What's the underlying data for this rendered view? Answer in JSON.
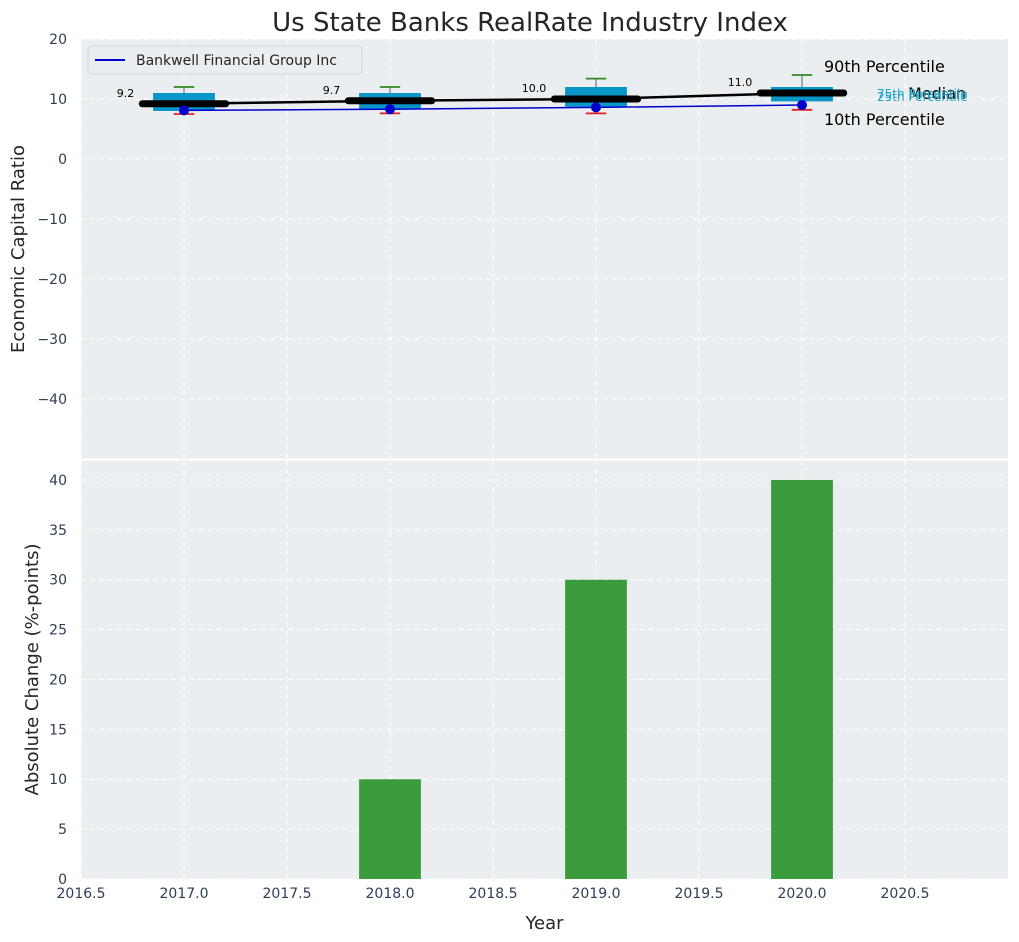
{
  "title": "Us State Banks RealRate Industry Index",
  "colors": {
    "panel_bg": "#eaeef0",
    "box_fill": "#0896c9",
    "median_line": "#000000",
    "company_line": "#0000cc",
    "p90_whisker": "#2e8b22",
    "p10_whisker": "#e02020",
    "bar_fill": "#3a9c3c",
    "quartile_label": "#1aa3c7"
  },
  "chart_data": [
    {
      "type": "box",
      "ylabel": "Economic Capital Ratio",
      "ylim": [
        -50,
        20
      ],
      "yticks": [
        20,
        10,
        0,
        -10,
        -20,
        -30,
        -40
      ],
      "ytick_labels": [
        "20",
        "10",
        "0",
        "−10",
        "−20",
        "−30",
        "−40"
      ],
      "xlim": [
        2016.5,
        2021.0
      ],
      "grid": true,
      "legend": {
        "position": "top-left",
        "entries": [
          "Bankwell Financial Group Inc"
        ]
      },
      "x": [
        2017,
        2018,
        2019,
        2020
      ],
      "p10": [
        7.5,
        7.6,
        7.6,
        8.2
      ],
      "q1": [
        8.0,
        8.3,
        8.7,
        9.6
      ],
      "median": [
        9.2,
        9.7,
        10.0,
        11.0
      ],
      "q3": [
        11.0,
        11.0,
        12.0,
        12.0
      ],
      "p90": [
        12.0,
        12.0,
        13.4,
        14.0
      ],
      "median_labels": [
        "9.2",
        "9.7",
        "10.0",
        "11.0"
      ],
      "series": [
        {
          "name": "Bankwell Financial Group Inc",
          "values": [
            8.1,
            8.3,
            8.6,
            9.0
          ]
        }
      ],
      "annotations": {
        "p90": "90th Percentile",
        "median": "Median",
        "p10": "10th Percentile",
        "q3": "75th Percentile",
        "q1": "25th Percentile"
      }
    },
    {
      "type": "bar",
      "xlabel": "Year",
      "ylabel": "Absolute Change (%-points)",
      "ylim": [
        0,
        42
      ],
      "yticks": [
        0,
        5,
        10,
        15,
        20,
        25,
        30,
        35,
        40
      ],
      "xlim": [
        2016.5,
        2021.0
      ],
      "xticks": [
        2016.5,
        2017.0,
        2017.5,
        2018.0,
        2018.5,
        2019.0,
        2019.5,
        2020.0,
        2020.5
      ],
      "xtick_labels": [
        "2016.5",
        "2017.0",
        "2017.5",
        "2018.0",
        "2018.5",
        "2019.0",
        "2019.5",
        "2020.0",
        "2020.5"
      ],
      "grid": true,
      "x": [
        2017,
        2018,
        2019,
        2020
      ],
      "values": [
        0,
        10,
        30,
        40
      ],
      "bar_width": 0.3
    }
  ]
}
